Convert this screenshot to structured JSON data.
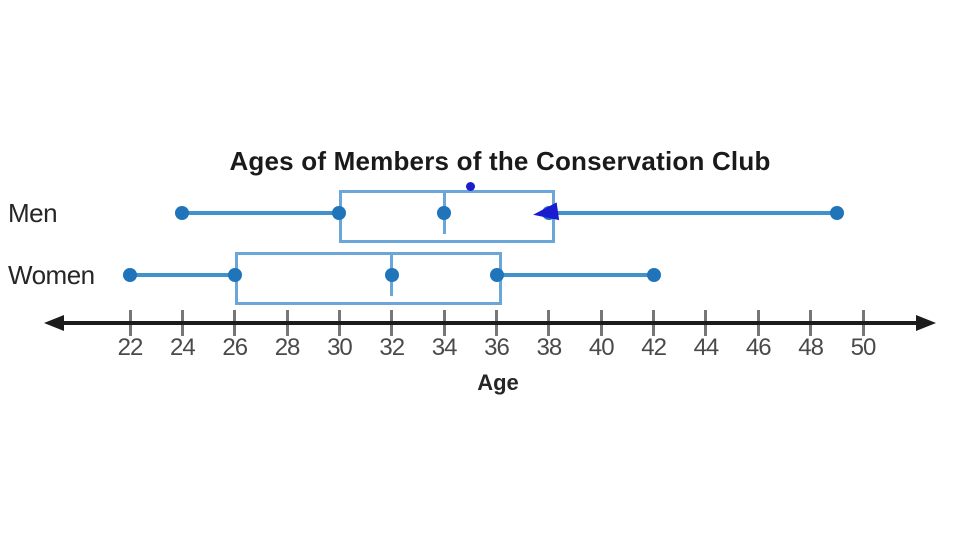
{
  "chart_data": {
    "type": "boxplot",
    "orientation": "horizontal",
    "title": "Ages of Members of the Conservation Club",
    "xlabel": "Age",
    "xlim": [
      22,
      50
    ],
    "tick_step": 2,
    "ticks": [
      22,
      24,
      26,
      28,
      30,
      32,
      34,
      36,
      38,
      40,
      42,
      44,
      46,
      48,
      50
    ],
    "grid": false,
    "legend": "none",
    "series": [
      {
        "name": "Men",
        "min": 24,
        "q1": 30,
        "median": 34,
        "q3": 38,
        "max": 49
      },
      {
        "name": "Women",
        "min": 22,
        "q1": 26,
        "median": 32,
        "q3": 36,
        "max": 42
      }
    ]
  },
  "annotations": [
    {
      "name": "stray-ink-dot",
      "shape": "dot",
      "age": 35,
      "row": "Men"
    },
    {
      "name": "cursor-arrowhead",
      "shape": "arrow-left",
      "age": 38,
      "row": "Men"
    }
  ],
  "colors": {
    "box_stroke": "#6aa7d8",
    "whisker": "#4191cd",
    "dot": "#1f74ba",
    "axis": "#1c1c1c",
    "tick": "#777777",
    "tick_label": "#4a4a4a",
    "annotation": "#1b1bd0"
  }
}
